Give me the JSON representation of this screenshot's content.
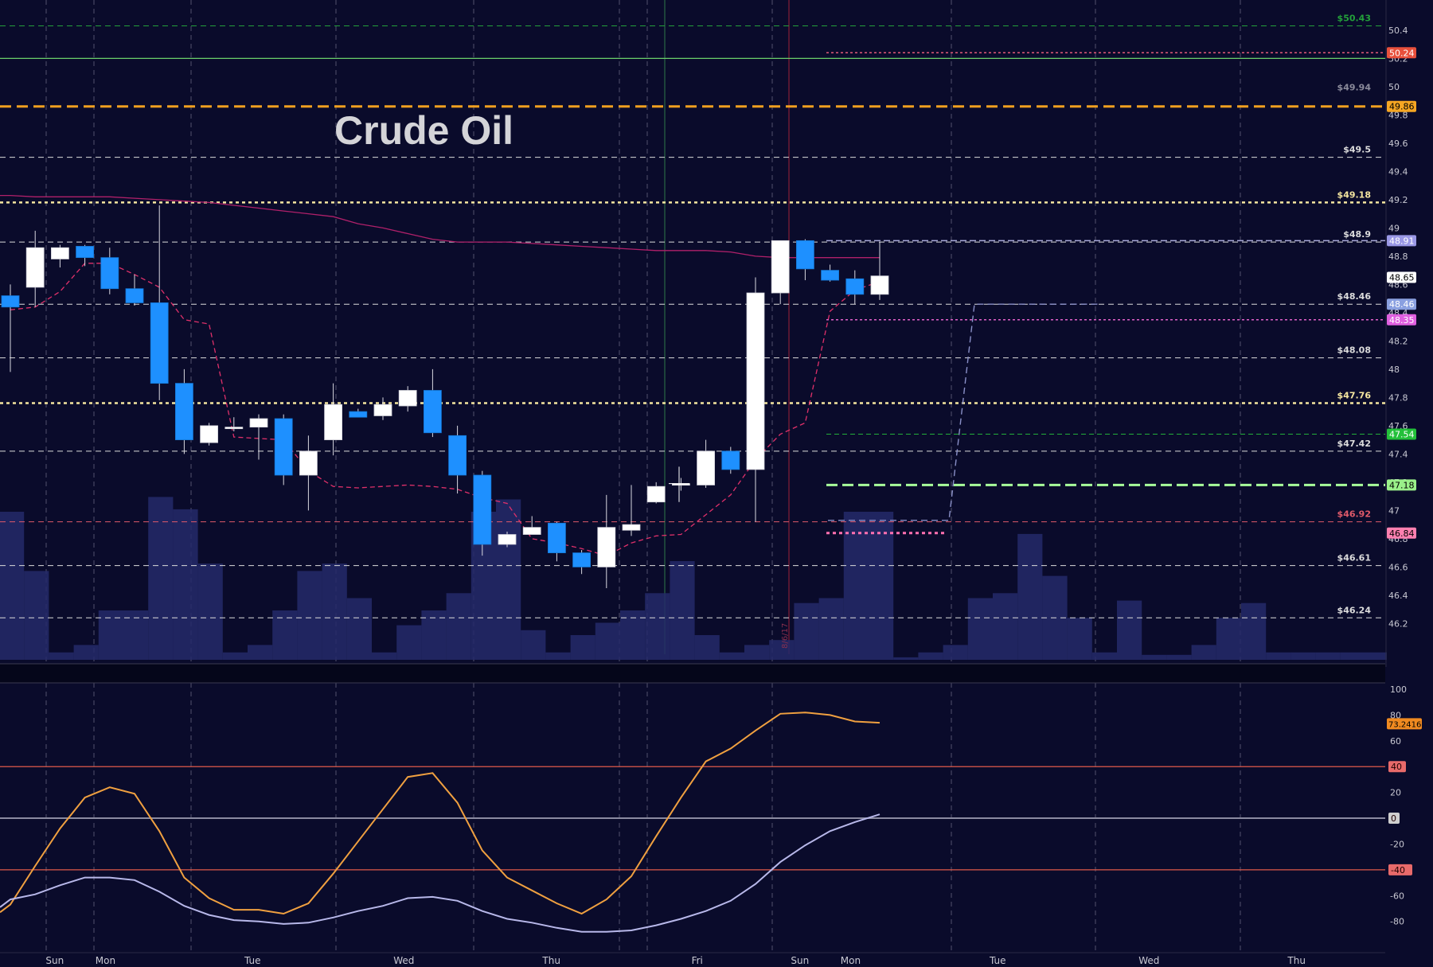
{
  "chart_data": {
    "type": "candlestick",
    "title": "Crude Oil",
    "price_axis": {
      "ylim": [
        46.05,
        50.45
      ],
      "ticks": [
        46.2,
        46.4,
        46.6,
        46.8,
        47,
        47.2,
        47.4,
        47.6,
        47.8,
        48,
        48.2,
        48.4,
        48.6,
        48.8,
        49,
        49.2,
        49.4,
        49.6,
        49.8,
        50,
        50.2,
        50.4
      ]
    },
    "day_labels": [
      {
        "label": "Sun",
        "bar": 2
      },
      {
        "label": "Mon",
        "bar": 4
      },
      {
        "label": "Tue",
        "bar": 10
      },
      {
        "label": "Wed",
        "bar": 16
      },
      {
        "label": "Thu",
        "bar": 22
      },
      {
        "label": "Fri",
        "bar": 28
      },
      {
        "label": "Sun",
        "bar": 32
      },
      {
        "label": "Mon",
        "bar": 34
      },
      {
        "label": "Tue",
        "bar": 40
      },
      {
        "label": "Wed",
        "bar": 46
      },
      {
        "label": "Thu",
        "bar": 52
      }
    ],
    "date_marker": "8/6/17",
    "candles": [
      {
        "o": 48.52,
        "h": 48.6,
        "l": 47.98,
        "c": 48.44
      },
      {
        "o": 48.58,
        "h": 48.98,
        "l": 48.44,
        "c": 48.86
      },
      {
        "o": 48.78,
        "h": 48.88,
        "l": 48.72,
        "c": 48.86
      },
      {
        "o": 48.87,
        "h": 48.88,
        "l": 48.73,
        "c": 48.79
      },
      {
        "o": 48.79,
        "h": 48.86,
        "l": 48.53,
        "c": 48.57
      },
      {
        "o": 48.57,
        "h": 48.67,
        "l": 48.45,
        "c": 48.47
      },
      {
        "o": 48.47,
        "h": 49.16,
        "l": 47.78,
        "c": 47.9
      },
      {
        "o": 47.9,
        "h": 48.0,
        "l": 47.4,
        "c": 47.5
      },
      {
        "o": 47.48,
        "h": 47.62,
        "l": 47.46,
        "c": 47.6
      },
      {
        "o": 47.59,
        "h": 47.66,
        "l": 47.56,
        "c": 47.59
      },
      {
        "o": 47.59,
        "h": 47.68,
        "l": 47.36,
        "c": 47.65
      },
      {
        "o": 47.65,
        "h": 47.68,
        "l": 47.18,
        "c": 47.25
      },
      {
        "o": 47.25,
        "h": 47.53,
        "l": 47.0,
        "c": 47.42
      },
      {
        "o": 47.5,
        "h": 47.9,
        "l": 47.39,
        "c": 47.75
      },
      {
        "o": 47.7,
        "h": 47.72,
        "l": 47.68,
        "c": 47.66
      },
      {
        "o": 47.67,
        "h": 47.8,
        "l": 47.64,
        "c": 47.75
      },
      {
        "o": 47.74,
        "h": 47.88,
        "l": 47.7,
        "c": 47.85
      },
      {
        "o": 47.85,
        "h": 48.0,
        "l": 47.52,
        "c": 47.55
      },
      {
        "o": 47.53,
        "h": 47.6,
        "l": 47.12,
        "c": 47.25
      },
      {
        "o": 47.25,
        "h": 47.28,
        "l": 46.68,
        "c": 46.76
      },
      {
        "o": 46.76,
        "h": 46.85,
        "l": 46.74,
        "c": 46.83
      },
      {
        "o": 46.83,
        "h": 46.96,
        "l": 46.83,
        "c": 46.88
      },
      {
        "o": 46.91,
        "h": 46.92,
        "l": 46.64,
        "c": 46.7
      },
      {
        "o": 46.7,
        "h": 46.72,
        "l": 46.55,
        "c": 46.6
      },
      {
        "o": 46.6,
        "h": 47.11,
        "l": 46.45,
        "c": 46.88
      },
      {
        "o": 46.86,
        "h": 47.18,
        "l": 46.82,
        "c": 46.9
      },
      {
        "o": 47.06,
        "h": 47.2,
        "l": 47.05,
        "c": 47.17
      },
      {
        "o": 47.18,
        "h": 47.23,
        "l": 47.14,
        "c": 47.19
      },
      {
        "o": 47.18,
        "h": 47.5,
        "l": 47.16,
        "c": 47.42
      },
      {
        "o": 47.42,
        "h": 47.45,
        "l": 47.26,
        "c": 47.29
      },
      {
        "o": 47.29,
        "h": 48.65,
        "l": 46.92,
        "c": 48.54
      },
      {
        "o": 48.54,
        "h": 48.91,
        "l": 48.46,
        "c": 48.91
      },
      {
        "o": 48.91,
        "h": 48.92,
        "l": 48.63,
        "c": 48.71
      },
      {
        "o": 48.7,
        "h": 48.74,
        "l": 48.62,
        "c": 48.63
      },
      {
        "o": 48.64,
        "h": 48.7,
        "l": 48.46,
        "c": 48.53
      },
      {
        "o": 48.53,
        "h": 48.9,
        "l": 48.49,
        "c": 48.66
      }
    ],
    "volume": {
      "max": 100,
      "values": [
        60,
        36,
        3,
        6,
        20,
        20,
        66,
        61,
        39,
        3,
        6,
        20,
        36,
        39,
        25,
        3,
        14,
        20,
        27,
        60,
        65,
        12,
        3,
        10,
        15,
        20,
        27,
        40,
        10,
        3,
        6,
        8,
        23,
        25,
        60,
        60,
        1,
        3,
        6,
        25,
        27,
        51,
        34,
        17,
        3,
        24,
        2,
        2,
        6,
        17,
        23,
        3,
        3,
        3,
        3,
        3
      ]
    },
    "moving_average_solid": [
      49.23,
      49.22,
      49.22,
      49.22,
      49.22,
      49.21,
      49.2,
      49.19,
      49.18,
      49.16,
      49.14,
      49.12,
      49.1,
      49.08,
      49.03,
      49.0,
      48.96,
      48.92,
      48.9,
      48.9,
      48.9,
      48.89,
      48.88,
      48.87,
      48.86,
      48.85,
      48.84,
      48.84,
      48.84,
      48.83,
      48.8,
      48.79,
      48.79,
      48.79,
      48.79,
      48.79
    ],
    "moving_average_dashed": [
      48.42,
      48.44,
      48.55,
      48.75,
      48.75,
      48.67,
      48.58,
      48.35,
      48.32,
      47.52,
      47.51,
      47.5,
      47.28,
      47.17,
      47.16,
      47.17,
      47.18,
      47.17,
      47.15,
      47.09,
      47.05,
      46.8,
      46.77,
      46.73,
      46.68,
      46.77,
      46.82,
      46.83,
      46.97,
      47.11,
      47.36,
      47.54,
      47.62,
      48.41,
      48.56,
      48.62
    ],
    "horizontal_levels": [
      {
        "price": 50.43,
        "label": "$50.43",
        "color": "#23a03a",
        "style": "dashed-thin",
        "label_side": "left"
      },
      {
        "price": 50.2,
        "label": "",
        "color": "#6acf6a",
        "style": "solid"
      },
      {
        "price": 49.94,
        "label": "$49.94",
        "color": "#8a8a9a",
        "style": "none",
        "label_side": "left"
      },
      {
        "price": 49.86,
        "label": "",
        "color": "#f0a020",
        "style": "dashed-thick"
      },
      {
        "price": 49.5,
        "label": "$49.5",
        "color": "#dcdcdc",
        "style": "dashed-thin",
        "label_side": "left"
      },
      {
        "price": 49.18,
        "label": "$49.18",
        "color": "#f5e6a0",
        "style": "dotted-thick",
        "label_side": "left"
      },
      {
        "price": 48.9,
        "label": "$48.9",
        "color": "#dcdcdc",
        "style": "dashed-thin",
        "label_side": "left"
      },
      {
        "price": 48.46,
        "label": "$48.46",
        "color": "#dcdcdc",
        "style": "dashed-thin",
        "label_side": "left"
      },
      {
        "price": 48.08,
        "label": "$48.08",
        "color": "#dcdcdc",
        "style": "dashed-thin",
        "label_side": "left"
      },
      {
        "price": 47.76,
        "label": "$47.76",
        "color": "#f5e6a0",
        "style": "dotted-thick",
        "label_side": "left"
      },
      {
        "price": 47.42,
        "label": "$47.42",
        "color": "#dcdcdc",
        "style": "dashed-thin",
        "label_side": "left"
      },
      {
        "price": 46.92,
        "label": "$46.92",
        "color": "#e05a6a",
        "style": "dashed-thin",
        "label_side": "left"
      },
      {
        "price": 46.61,
        "label": "$46.61",
        "color": "#dcdcdc",
        "style": "dashed-thin",
        "label_side": "left"
      },
      {
        "price": 46.24,
        "label": "$46.24",
        "color": "#dcdcdc",
        "style": "dashed-thin",
        "label_side": "left"
      }
    ],
    "projection_levels": [
      {
        "price": 50.24,
        "color": "#e25878",
        "style": "dotted"
      },
      {
        "price": 48.91,
        "color": "#a8a8d8",
        "style": "dashed"
      },
      {
        "price": 48.35,
        "color": "#e060c8",
        "style": "dotted"
      },
      {
        "price": 47.54,
        "color": "#23b03a",
        "style": "dashed-thin"
      },
      {
        "price": 47.18,
        "color": "#a8ff9a",
        "style": "dashed-thick"
      },
      {
        "price": 46.84,
        "color": "#ff70b0",
        "style": "dotted-short"
      }
    ],
    "price_badges": [
      {
        "price": 50.24,
        "label": "50.24",
        "bg": "#e8503c",
        "fg": "#ffffff"
      },
      {
        "price": 49.86,
        "label": "49.86",
        "bg": "#f5a623",
        "fg": "#000000"
      },
      {
        "price": 48.91,
        "label": "48.91",
        "bg": "#9a98e6",
        "fg": "#ffffff"
      },
      {
        "price": 48.65,
        "label": "48.65",
        "bg": "#ffffff",
        "fg": "#000000"
      },
      {
        "price": 48.46,
        "label": "48.46",
        "bg": "#8aa0e0",
        "fg": "#ffffff"
      },
      {
        "price": 48.35,
        "label": "48.35",
        "bg": "#e060e0",
        "fg": "#ffffff"
      },
      {
        "price": 47.54,
        "label": "47.54",
        "bg": "#23c03a",
        "fg": "#ffffff"
      },
      {
        "price": 47.18,
        "label": "47.18",
        "bg": "#9af08a",
        "fg": "#000000"
      },
      {
        "price": 46.84,
        "label": "46.84",
        "bg": "#ff80b0",
        "fg": "#000000"
      }
    ],
    "oscillator": {
      "ylim": [
        -95,
        100
      ],
      "ticks": [
        100,
        80,
        60,
        20,
        -20,
        -60,
        -80
      ],
      "plain_ticks": [
        100,
        80,
        60,
        20,
        -20,
        -60,
        -80
      ],
      "levels": [
        {
          "value": 40,
          "label": "40",
          "color": "#e05a4a",
          "badge_bg": "#e86a6a"
        },
        {
          "value": 0,
          "label": "0",
          "color": "#8a8aa0",
          "badge_bg": "#cfcfcf"
        },
        {
          "value": -40,
          "label": "-40",
          "color": "#e05a4a",
          "badge_bg": "#e86a6a"
        }
      ],
      "current_badge": {
        "value": 73.2416,
        "label": "73.2416",
        "bg": "#f08a20",
        "fg": "#000000"
      },
      "series": [
        {
          "name": "",
          "color": "#f0a040",
          "values": [
            -67,
            -37,
            -8,
            16,
            24,
            19,
            -10,
            -46,
            -62,
            -71,
            -71,
            -74,
            -66,
            -43,
            -18,
            7,
            32,
            35,
            12,
            -25,
            -46,
            -56,
            -66,
            -74,
            -63,
            -45,
            -14,
            16,
            44,
            54,
            68,
            81,
            82,
            80,
            75,
            74
          ]
        },
        {
          "name": "",
          "color": "#b8b8ea",
          "values": [
            -63,
            -59,
            -52,
            -46,
            -46,
            -48,
            -57,
            -68,
            -75,
            -79,
            -80,
            -82,
            -81,
            -77,
            -72,
            -68,
            -62,
            -61,
            -64,
            -72,
            -78,
            -81,
            -85,
            -88,
            -88,
            -87,
            -83,
            -78,
            -72,
            -64,
            -51,
            -34,
            -21,
            -10,
            -3,
            3
          ]
        }
      ]
    }
  }
}
